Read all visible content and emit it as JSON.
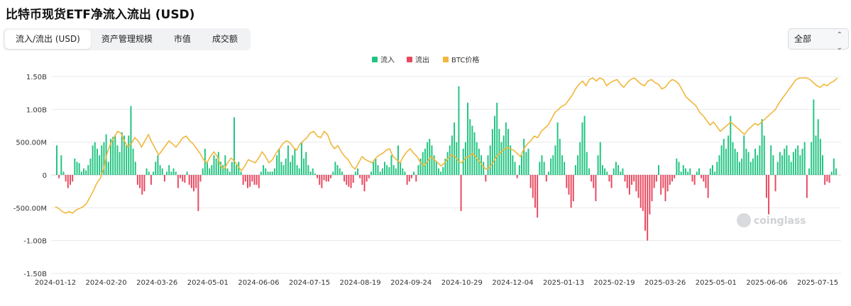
{
  "page": {
    "title": "比特币现货ETF净流入流出 (USD)"
  },
  "tabs": [
    {
      "label": "流入/流出 (USD)",
      "active": true
    },
    {
      "label": "资产管理规模",
      "active": false
    },
    {
      "label": "市值",
      "active": false
    },
    {
      "label": "成交额",
      "active": false
    }
  ],
  "range_select": {
    "value": "全部"
  },
  "watermark": "coinglass",
  "colors": {
    "inflow": "#20c481",
    "outflow": "#e8485f",
    "btc": "#f0b73b",
    "grid": "#e9e9ec",
    "zero_line": "#cfd1d6"
  },
  "chart_data": {
    "type": "bar",
    "legend": [
      {
        "name": "流入",
        "color": "#20c481"
      },
      {
        "name": "流出",
        "color": "#e8485f"
      },
      {
        "name": "BTC价格",
        "color": "#f0b73b"
      }
    ],
    "legend_position": "top-center",
    "y_ticks": [
      "1.50B",
      "1.00B",
      "500.00M",
      "0",
      "-500.00M",
      "-1.00B",
      "-1.50B"
    ],
    "y_tick_values": [
      1.5,
      1.0,
      0.5,
      0,
      -0.5,
      -1.0,
      -1.5
    ],
    "ylim": [
      -1.5,
      1.5
    ],
    "y_unit": "B USD",
    "x_ticks": [
      "2024-01-12",
      "2024-02-20",
      "2024-03-26",
      "2024-05-01",
      "2024-06-06",
      "2024-07-15",
      "2024-08-19",
      "2024-09-24",
      "2024-10-29",
      "2024-12-04",
      "2025-01-13",
      "2025-02-19",
      "2025-03-26",
      "2025-05-01",
      "2025-06-06",
      "2025-07-15"
    ],
    "bars_note": "approximate daily net flows (B USD), one per trading day from 2024-01-12",
    "net_flow_values": [
      0.45,
      -0.05,
      0.3,
      0.05,
      -0.1,
      -0.2,
      -0.15,
      -0.1,
      0.25,
      0.2,
      0.18,
      0.05,
      0.1,
      0.07,
      0.15,
      0.25,
      0.45,
      0.5,
      0.4,
      0.3,
      0.45,
      0.5,
      0.62,
      0.2,
      0.55,
      0.58,
      0.6,
      0.45,
      0.35,
      0.65,
      0.6,
      0.45,
      0.6,
      1.05,
      0.4,
      0.2,
      -0.15,
      -0.2,
      -0.3,
      -0.25,
      0.1,
      0.05,
      -0.15,
      0.05,
      0.2,
      0.3,
      0.15,
      0.1,
      -0.1,
      0.05,
      0.15,
      0.05,
      0.1,
      0.05,
      -0.2,
      -0.05,
      -0.1,
      -0.12,
      0.05,
      -0.15,
      -0.2,
      -0.25,
      -0.2,
      -0.55,
      -0.1,
      0.1,
      0.4,
      0.2,
      0.1,
      0.15,
      0.3,
      0.25,
      0.35,
      0.2,
      0.15,
      0.3,
      0.1,
      0.05,
      0.2,
      0.88,
      0.15,
      0.2,
      0.05,
      -0.15,
      -0.1,
      -0.2,
      -0.18,
      -0.1,
      -0.15,
      -0.15,
      -0.2,
      0.05,
      0.15,
      0.1,
      0.05,
      0.05,
      0.05,
      0.1,
      0.3,
      0.4,
      0.2,
      0.15,
      0.25,
      0.45,
      0.2,
      0.3,
      0.4,
      0.15,
      0.1,
      0.5,
      0.25,
      0.35,
      0.15,
      0.05,
      0.1,
      0.02,
      -0.05,
      -0.15,
      -0.2,
      -0.08,
      -0.1,
      -0.1,
      -0.05,
      0.05,
      0.2,
      0.15,
      0.1,
      0.05,
      -0.1,
      -0.15,
      -0.18,
      -0.2,
      -0.12,
      0.05,
      0.1,
      -0.05,
      -0.15,
      -0.25,
      -0.1,
      -0.05,
      0.05,
      0.2,
      0.25,
      0.15,
      0.05,
      0.1,
      0.2,
      0.15,
      0.12,
      0.3,
      0.15,
      0.1,
      0.45,
      0.2,
      0.1,
      0.05,
      -0.15,
      -0.1,
      -0.05,
      0.05,
      -0.1,
      0.15,
      0.25,
      0.35,
      0.4,
      0.5,
      0.55,
      0.45,
      0.3,
      0.2,
      0.1,
      0.05,
      0.12,
      0.25,
      0.35,
      0.45,
      0.6,
      0.8,
      0.5,
      1.35,
      -0.55,
      0.4,
      0.5,
      1.1,
      0.85,
      0.75,
      0.65,
      0.5,
      0.4,
      0.3,
      0.2,
      -0.1,
      0.3,
      0.45,
      0.7,
      0.9,
      1.1,
      0.7,
      0.5,
      0.6,
      0.8,
      0.7,
      0.45,
      0.3,
      0.2,
      -0.05,
      0.15,
      0.3,
      0.55,
      0.35,
      0.4,
      -0.2,
      -0.35,
      -0.5,
      -0.65,
      0.2,
      0.3,
      0.2,
      -0.1,
      0.05,
      0.25,
      0.3,
      0.45,
      0.8,
      0.55,
      0.3,
      0.2,
      -0.2,
      -0.3,
      -0.5,
      -0.4,
      0.15,
      0.3,
      0.5,
      0.8,
      0.9,
      0.35,
      0.1,
      -0.1,
      -0.2,
      -0.4,
      0.3,
      0.5,
      0.15,
      0.1,
      0.05,
      -0.1,
      -0.2,
      0.1,
      0.2,
      0.15,
      0.05,
      0.1,
      -0.1,
      -0.2,
      -0.3,
      -0.15,
      -0.1,
      -0.25,
      -0.35,
      -0.5,
      -0.55,
      -0.85,
      -1.0,
      -0.6,
      -0.4,
      -0.2,
      -0.1,
      0.15,
      -0.3,
      -0.2,
      -0.4,
      -0.25,
      -0.15,
      -0.1,
      -0.05,
      0.25,
      0.2,
      0.05,
      0.15,
      0.1,
      0.05,
      0.1,
      -0.1,
      -0.15,
      0.05,
      0.1,
      -0.05,
      -0.1,
      -0.2,
      -0.35,
      0.1,
      0.15,
      0.05,
      0.2,
      0.3,
      0.45,
      0.55,
      0.4,
      0.6,
      0.9,
      0.5,
      0.4,
      0.35,
      0.2,
      0.25,
      0.6,
      0.4,
      0.35,
      0.2,
      0.25,
      0.4,
      0.3,
      0.45,
      0.85,
      0.6,
      -0.35,
      -0.6,
      0.45,
      0.3,
      -0.25,
      0.2,
      0.35,
      0.3,
      0.4,
      0.45,
      0.3,
      0.2,
      0.35,
      0.4,
      0.45,
      0.3,
      0.4,
      0.5,
      -0.35,
      0.1,
      0.5,
      1.15,
      0.6,
      0.85,
      0.55,
      0.3,
      -0.15,
      -0.1,
      -0.12,
      0.05,
      0.25,
      0.1
    ],
    "btc_note": "approximate BTC price, normalized 0-1 on the secondary axis",
    "btc_price_normalized": [
      0.18,
      0.17,
      0.15,
      0.14,
      0.15,
      0.14,
      0.16,
      0.17,
      0.18,
      0.2,
      0.24,
      0.28,
      0.33,
      0.36,
      0.42,
      0.52,
      0.58,
      0.62,
      0.66,
      0.65,
      0.6,
      0.56,
      0.58,
      0.62,
      0.6,
      0.56,
      0.6,
      0.64,
      0.59,
      0.55,
      0.51,
      0.54,
      0.57,
      0.6,
      0.58,
      0.56,
      0.59,
      0.62,
      0.63,
      0.6,
      0.58,
      0.55,
      0.52,
      0.48,
      0.46,
      0.5,
      0.53,
      0.5,
      0.44,
      0.42,
      0.46,
      0.49,
      0.47,
      0.44,
      0.41,
      0.44,
      0.48,
      0.47,
      0.46,
      0.49,
      0.53,
      0.5,
      0.46,
      0.48,
      0.52,
      0.55,
      0.58,
      0.6,
      0.59,
      0.56,
      0.54,
      0.58,
      0.6,
      0.62,
      0.65,
      0.66,
      0.63,
      0.62,
      0.66,
      0.64,
      0.58,
      0.55,
      0.57,
      0.53,
      0.5,
      0.48,
      0.44,
      0.42,
      0.46,
      0.5,
      0.48,
      0.47,
      0.46,
      0.49,
      0.51,
      0.52,
      0.54,
      0.55,
      0.5,
      0.48,
      0.46,
      0.5,
      0.53,
      0.55,
      0.52,
      0.5,
      0.46,
      0.44,
      0.47,
      0.5,
      0.48,
      0.46,
      0.44,
      0.46,
      0.49,
      0.51,
      0.5,
      0.47,
      0.46,
      0.49,
      0.5,
      0.52,
      0.5,
      0.47,
      0.44,
      0.42,
      0.43,
      0.46,
      0.5,
      0.52,
      0.54,
      0.56,
      0.55,
      0.54,
      0.52,
      0.5,
      0.55,
      0.58,
      0.6,
      0.63,
      0.62,
      0.66,
      0.68,
      0.7,
      0.74,
      0.78,
      0.8,
      0.82,
      0.83,
      0.86,
      0.89,
      0.93,
      0.96,
      0.98,
      0.95,
      0.99,
      1.0,
      0.98,
      1.0,
      0.99,
      0.95,
      0.97,
      0.98,
      0.99,
      0.96,
      0.94,
      0.97,
      0.99,
      1.0,
      0.98,
      0.96,
      0.95,
      0.98,
      0.99,
      0.97,
      0.96,
      0.93,
      0.94,
      0.97,
      0.99,
      0.98,
      0.96,
      0.92,
      0.88,
      0.86,
      0.84,
      0.82,
      0.78,
      0.76,
      0.73,
      0.7,
      0.72,
      0.69,
      0.66,
      0.68,
      0.7,
      0.72,
      0.7,
      0.68,
      0.66,
      0.64,
      0.67,
      0.69,
      0.71,
      0.7,
      0.72,
      0.74,
      0.76,
      0.78,
      0.8,
      0.84,
      0.87,
      0.9,
      0.93,
      0.96,
      0.99,
      1.0,
      1.0,
      1.0,
      0.99,
      0.97,
      0.95,
      0.94,
      0.96,
      0.95,
      0.97,
      0.98,
      1.0
    ]
  }
}
